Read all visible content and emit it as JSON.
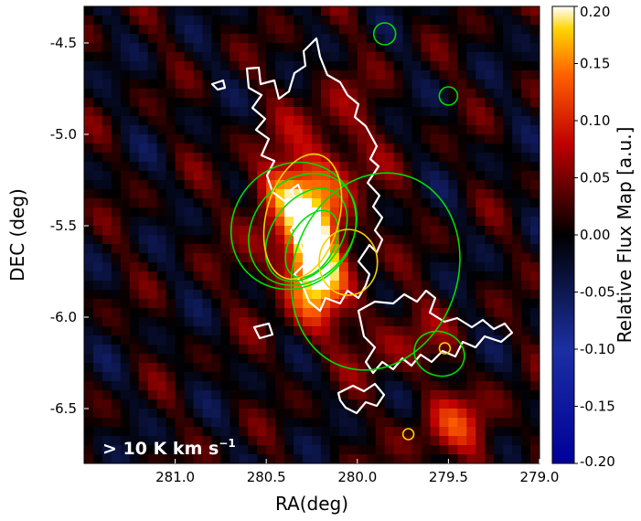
{
  "chart_data": {
    "type": "heatmap",
    "title": "",
    "xlabel": "RA(deg)",
    "ylabel": "DEC (deg)",
    "xlim": [
      281.5,
      279.0
    ],
    "ylim": [
      -6.8,
      -4.3
    ],
    "x_ticks": [
      {
        "value": 281.0,
        "label": "281.0"
      },
      {
        "value": 280.5,
        "label": "280.5"
      },
      {
        "value": 280.0,
        "label": "280.0"
      },
      {
        "value": 279.5,
        "label": "279.5"
      },
      {
        "value": 279.0,
        "label": "279.0"
      }
    ],
    "y_ticks": [
      {
        "value": -4.5,
        "label": "-4.5"
      },
      {
        "value": -5.0,
        "label": "-5.0"
      },
      {
        "value": -5.5,
        "label": "-5.5"
      },
      {
        "value": -6.0,
        "label": "-6.0"
      },
      {
        "value": -6.5,
        "label": "-6.5"
      }
    ],
    "colorbar": {
      "label": "Relative Flux Map [a.u.]",
      "range": [
        -0.2,
        0.2
      ],
      "colormap": "blue-black-red-yellow-white",
      "ticks": [
        {
          "value": 0.2,
          "label": "0.20"
        },
        {
          "value": 0.15,
          "label": "0.15"
        },
        {
          "value": 0.1,
          "label": "0.10"
        },
        {
          "value": 0.05,
          "label": "0.05"
        },
        {
          "value": 0.0,
          "label": "0.00"
        },
        {
          "value": -0.05,
          "label": "-0.05"
        },
        {
          "value": -0.1,
          "label": "-0.10"
        },
        {
          "value": -0.15,
          "label": "-0.15"
        },
        {
          "value": -0.2,
          "label": "-0.20"
        }
      ]
    },
    "annotation": {
      "main": "> 10 K km s",
      "superscript": "−1"
    },
    "emission_sources": [
      {
        "ra": 280.23,
        "dec": -5.7,
        "amplitude": 0.19,
        "sigma_ra": 0.1,
        "sigma_dec": 0.22
      },
      {
        "ra": 280.3,
        "dec": -5.45,
        "amplitude": 0.1,
        "sigma_ra": 0.2,
        "sigma_dec": 0.3
      },
      {
        "ra": 280.42,
        "dec": -5.3,
        "amplitude": 0.07,
        "sigma_ra": 0.12,
        "sigma_dec": 0.1
      },
      {
        "ra": 279.45,
        "dec": -6.6,
        "amplitude": 0.08,
        "sigma_ra": 0.18,
        "sigma_dec": 0.14
      },
      {
        "ra": 279.8,
        "dec": -6.1,
        "amplitude": 0.05,
        "sigma_ra": 0.2,
        "sigma_dec": 0.15
      },
      {
        "ra": 280.1,
        "dec": -5.0,
        "amplitude": 0.04,
        "sigma_ra": 0.15,
        "sigma_dec": 0.25
      }
    ],
    "contours": [
      {
        "color": "#00dd00",
        "ra": 280.35,
        "dec": -5.5,
        "rx": 0.33,
        "ry": 0.36,
        "rot": 40
      },
      {
        "color": "#00dd00",
        "ra": 280.3,
        "dec": -5.52,
        "rx": 0.27,
        "ry": 0.33,
        "rot": 40
      },
      {
        "color": "#00dd00",
        "ra": 280.28,
        "dec": -5.55,
        "rx": 0.19,
        "ry": 0.28,
        "rot": 35
      },
      {
        "color": "#00dd00",
        "ra": 280.25,
        "dec": -5.6,
        "rx": 0.12,
        "ry": 0.2,
        "rot": 30
      },
      {
        "color": "#00dd00",
        "ra": 279.9,
        "dec": -5.75,
        "rx": 0.45,
        "ry": 0.55,
        "rot": 20
      },
      {
        "color": "#00dd00",
        "ra": 279.55,
        "dec": -6.2,
        "rx": 0.14,
        "ry": 0.12,
        "rot": 20
      },
      {
        "color": "#00dd00",
        "ra": 279.85,
        "dec": -4.45,
        "rx": 0.06,
        "ry": 0.06,
        "rot": 0
      },
      {
        "color": "#00dd00",
        "ra": 279.5,
        "dec": -4.79,
        "rx": 0.05,
        "ry": 0.05,
        "rot": 0
      },
      {
        "color": "#f2d200",
        "ra": 280.3,
        "dec": -5.45,
        "rx": 0.2,
        "ry": 0.35,
        "rot": 15
      },
      {
        "color": "#f2d200",
        "ra": 280.05,
        "dec": -5.7,
        "rx": 0.16,
        "ry": 0.18,
        "rot": 0
      },
      {
        "color": "#f2d200",
        "ra": 279.52,
        "dec": -6.17,
        "rx": 0.03,
        "ry": 0.03,
        "rot": 0
      },
      {
        "color": "#f2d200",
        "ra": 279.72,
        "dec": -6.64,
        "rx": 0.03,
        "ry": 0.03,
        "rot": 0
      }
    ]
  },
  "colors": {
    "contour_green": "#00dd00",
    "contour_yellow": "#f2d200",
    "contour_white": "#ffffff"
  }
}
